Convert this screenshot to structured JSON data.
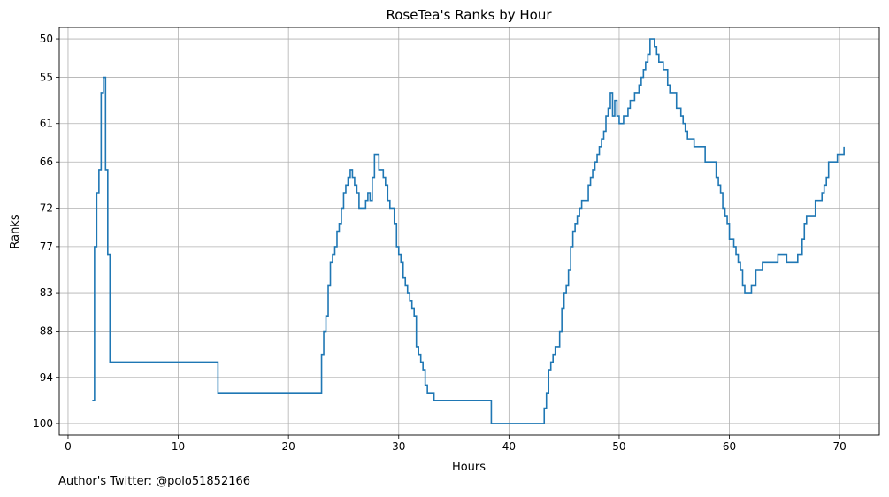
{
  "chart_data": {
    "type": "line",
    "title": "RoseTea's Ranks by Hour",
    "xlabel": "Hours",
    "ylabel": "Ranks",
    "xlim": [
      -0.8,
      73.6
    ],
    "ylim": [
      101.5,
      48.5
    ],
    "y_inverted": true,
    "x_ticks": [
      0,
      10,
      20,
      30,
      40,
      50,
      60,
      70
    ],
    "y_ticks": [
      50,
      55,
      61,
      66,
      72,
      77,
      83,
      88,
      94,
      100
    ],
    "grid": true,
    "line_color": "#1f77b4",
    "step": true,
    "series": [
      {
        "x": [
          2.2,
          2.4,
          2.6,
          2.8,
          3.0,
          3.2,
          3.4,
          3.6,
          3.8,
          4.0,
          13.6,
          23.0,
          23.2,
          23.4,
          23.6,
          23.8,
          24.0,
          24.2,
          24.4,
          24.6,
          24.8,
          25.0,
          25.2,
          25.4,
          25.6,
          25.8,
          26.0,
          26.2,
          26.4,
          26.6,
          27.0,
          27.2,
          27.4,
          27.6,
          27.8,
          28.0,
          28.2,
          28.6,
          28.8,
          29.0,
          29.2,
          29.6,
          29.8,
          30.0,
          30.2,
          30.4,
          30.6,
          30.8,
          31.0,
          31.2,
          31.4,
          31.6,
          31.8,
          32.0,
          32.2,
          32.4,
          32.6,
          32.8,
          33.2,
          33.6,
          34.0,
          38.4,
          43.2,
          43.4,
          43.6,
          43.8,
          44.0,
          44.2,
          44.6,
          44.8,
          45.0,
          45.2,
          45.4,
          45.6,
          45.8,
          46.0,
          46.2,
          46.4,
          46.6,
          46.8,
          47.2,
          47.4,
          47.6,
          47.8,
          48.0,
          48.2,
          48.4,
          48.6,
          48.8,
          49.0,
          49.2,
          49.4,
          49.6,
          49.8,
          50.0,
          50.2,
          50.4,
          50.6,
          50.8,
          51.0,
          51.2,
          51.4,
          51.6,
          51.8,
          52.0,
          52.2,
          52.4,
          52.6,
          52.8,
          53.0,
          53.2,
          53.4,
          53.6,
          54.0,
          54.2,
          54.4,
          54.6,
          55.2,
          55.6,
          55.8,
          56.0,
          56.2,
          56.4,
          56.8,
          57.6,
          57.8,
          58.2,
          58.8,
          59.0,
          59.2,
          59.4,
          59.6,
          59.8,
          60.0,
          60.4,
          60.6,
          60.8,
          61.0,
          61.2,
          61.4,
          61.6,
          62.0,
          62.2,
          62.4,
          63.0,
          64.4,
          64.8,
          65.2,
          66.2,
          66.6,
          66.8,
          67.0,
          67.8,
          68.0,
          68.4,
          68.6,
          68.8,
          69.0,
          69.4,
          69.8,
          70.4
        ],
        "y": [
          97,
          77,
          70,
          67,
          57,
          55,
          67,
          78,
          92,
          92,
          96,
          91,
          88,
          86,
          82,
          79,
          78,
          77,
          75,
          74,
          72,
          70,
          69,
          68,
          67,
          68,
          69,
          70,
          72,
          72,
          71,
          70,
          71,
          68,
          65,
          65,
          67,
          68,
          69,
          71,
          72,
          74,
          77,
          78,
          79,
          81,
          82,
          83,
          84,
          85,
          86,
          90,
          91,
          92,
          93,
          95,
          96,
          96,
          97,
          97,
          97,
          100,
          98,
          96,
          93,
          92,
          91,
          90,
          88,
          85,
          83,
          82,
          80,
          77,
          75,
          74,
          73,
          72,
          71,
          71,
          69,
          68,
          67,
          66,
          65,
          64,
          63,
          62,
          60,
          59,
          57,
          60,
          58,
          60,
          61,
          61,
          60,
          60,
          59,
          58,
          58,
          57,
          57,
          56,
          55,
          54,
          53,
          52,
          50,
          50,
          51,
          52,
          53,
          54,
          54,
          56,
          57,
          59,
          60,
          61,
          62,
          63,
          63,
          64,
          64,
          66,
          66,
          68,
          69,
          70,
          72,
          73,
          74,
          76,
          77,
          78,
          79,
          80,
          82,
          83,
          83,
          82,
          82,
          80,
          79,
          78,
          78,
          79,
          78,
          76,
          74,
          73,
          71,
          71,
          70,
          69,
          68,
          66,
          66,
          65,
          64
        ]
      }
    ]
  },
  "footnote": "Author's Twitter: @polo51852166"
}
